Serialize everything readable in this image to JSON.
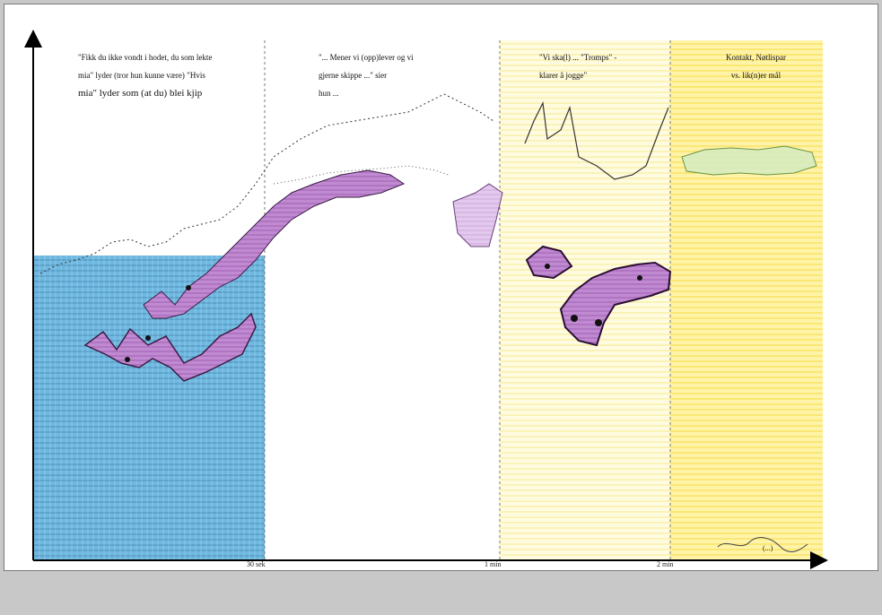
{
  "figure": {
    "phases": [
      {
        "id": "phase-1",
        "lines": [
          "\"Fikk du ikke vondt i hodet, du som lekte",
          "mia\" lyder (tror hun kunne være) \"Hvis",
          "mia\" lyder som (at du) blei kjip"
        ],
        "color": "#4aa6d8"
      },
      {
        "id": "phase-2",
        "lines": [
          "\"... Mener vi (opp)lever og vi",
          "gjerne skippe ...\" sier",
          "hun ..."
        ],
        "color": "#ffffff"
      },
      {
        "id": "phase-3",
        "lines": [
          "\"Vi ska(l) ... \"Tromps\" -",
          "klarer å jogge\""
        ],
        "color": "#fff9c4"
      },
      {
        "id": "phase-4",
        "lines": [
          "Kontakt, Nøtlispar",
          "vs. lik(n)er mål"
        ],
        "color": "#ffe566"
      }
    ],
    "x_ticks": [
      "30 sek",
      "1 min",
      "2 min"
    ],
    "legend_text": "(...)"
  }
}
